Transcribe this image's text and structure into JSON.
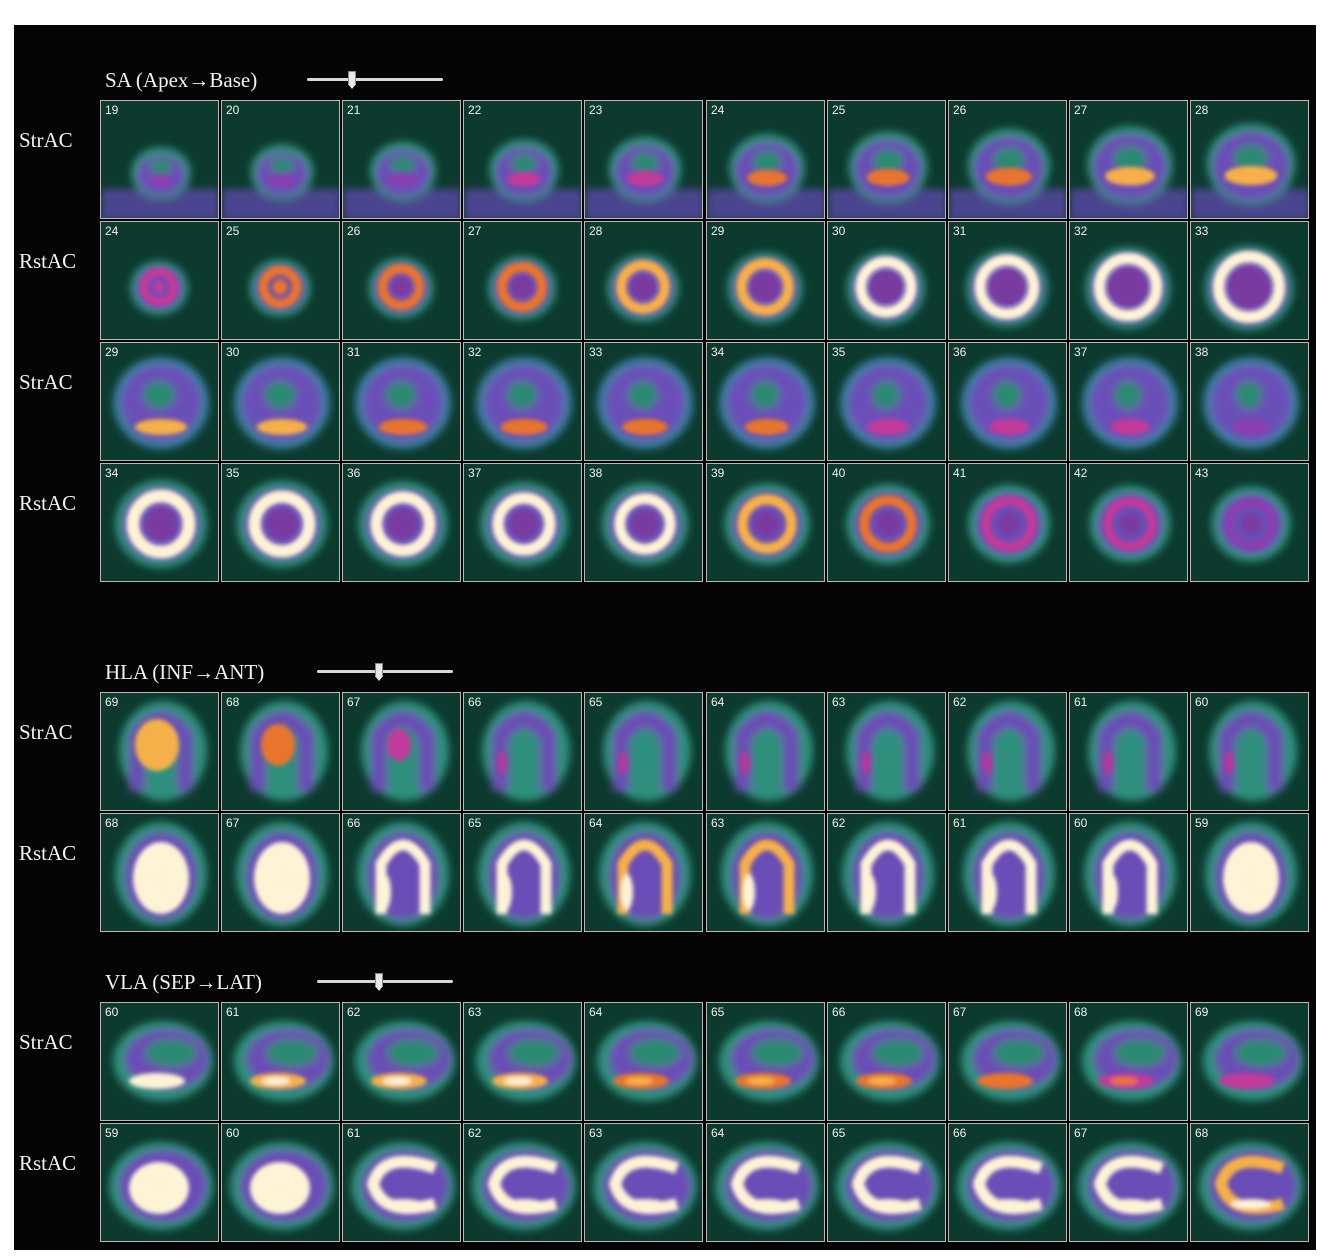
{
  "sections": [
    {
      "id": "sa",
      "title": "SA (Apex→Base)",
      "slider_value": 0.32,
      "rows": [
        {
          "label": "StrAC",
          "kind": "sa-stress-apical",
          "numbers": [
            "19",
            "20",
            "21",
            "22",
            "23",
            "24",
            "25",
            "26",
            "27",
            "28"
          ],
          "intensity": [
            0.15,
            0.2,
            0.3,
            0.4,
            0.5,
            0.58,
            0.66,
            0.74,
            0.8,
            0.86
          ]
        },
        {
          "label": "RstAC",
          "kind": "sa-rest-apical",
          "numbers": [
            "24",
            "25",
            "26",
            "27",
            "28",
            "29",
            "30",
            "31",
            "32",
            "33"
          ],
          "intensity": [
            0.5,
            0.55,
            0.62,
            0.7,
            0.78,
            0.85,
            0.9,
            0.94,
            0.97,
            1.0
          ]
        },
        {
          "label": "StrAC",
          "kind": "sa-stress-basal",
          "numbers": [
            "29",
            "30",
            "31",
            "32",
            "33",
            "34",
            "35",
            "36",
            "37",
            "38"
          ],
          "intensity": [
            0.8,
            0.75,
            0.7,
            0.65,
            0.6,
            0.55,
            0.5,
            0.45,
            0.4,
            0.32
          ]
        },
        {
          "label": "RstAC",
          "kind": "sa-rest-basal",
          "numbers": [
            "34",
            "35",
            "36",
            "37",
            "38",
            "39",
            "40",
            "41",
            "42",
            "43"
          ],
          "intensity": [
            1.0,
            1.0,
            0.98,
            0.95,
            0.9,
            0.82,
            0.72,
            0.5,
            0.35,
            0.25
          ]
        }
      ]
    },
    {
      "id": "hla",
      "title": "HLA (INF→ANT)",
      "slider_value": 0.45,
      "rows": [
        {
          "label": "StrAC",
          "kind": "hla-stress",
          "numbers": [
            "69",
            "68",
            "67",
            "66",
            "65",
            "64",
            "63",
            "62",
            "61",
            "60"
          ],
          "intensity": [
            0.75,
            0.65,
            0.52,
            0.4,
            0.32,
            0.28,
            0.3,
            0.3,
            0.28,
            0.28
          ]
        },
        {
          "label": "RstAC",
          "kind": "hla-rest",
          "numbers": [
            "68",
            "67",
            "66",
            "65",
            "64",
            "63",
            "62",
            "61",
            "60",
            "59"
          ],
          "intensity": [
            1.0,
            1.0,
            0.95,
            0.9,
            0.88,
            0.88,
            0.9,
            0.93,
            0.97,
            1.0
          ]
        }
      ]
    },
    {
      "id": "vla",
      "title": "VLA (SEP→LAT)",
      "slider_value": 0.45,
      "rows": [
        {
          "label": "StrAC",
          "kind": "vla-stress",
          "numbers": [
            "60",
            "61",
            "62",
            "63",
            "64",
            "65",
            "66",
            "67",
            "68",
            "69"
          ],
          "intensity": [
            0.9,
            0.85,
            0.8,
            0.75,
            0.72,
            0.68,
            0.62,
            0.55,
            0.45,
            0.38
          ]
        },
        {
          "label": "RstAC",
          "kind": "vla-rest",
          "numbers": [
            "59",
            "60",
            "61",
            "62",
            "63",
            "64",
            "65",
            "66",
            "67",
            "68"
          ],
          "intensity": [
            1.0,
            1.0,
            0.98,
            0.97,
            0.97,
            0.97,
            0.97,
            0.95,
            0.92,
            0.88
          ]
        }
      ]
    }
  ]
}
